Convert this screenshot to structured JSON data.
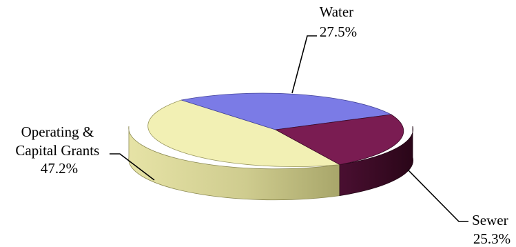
{
  "chart_data": {
    "type": "pie",
    "style": "3d",
    "slices": [
      {
        "name": "Water",
        "value": 27.5,
        "value_label": "27.5%",
        "color": "#7b7be6",
        "side_color": "#4c4ca0"
      },
      {
        "name": "Sewer",
        "value": 25.3,
        "value_label": "25.3%",
        "color": "#7a1c52",
        "side_color": "#3e0c29"
      },
      {
        "name_lines": [
          "Operating &",
          "Capital Grants"
        ],
        "value": 47.2,
        "value_label": "47.2%",
        "color": "#f2f0b4",
        "side_color": "#c4c288"
      }
    ],
    "legend": "none"
  }
}
